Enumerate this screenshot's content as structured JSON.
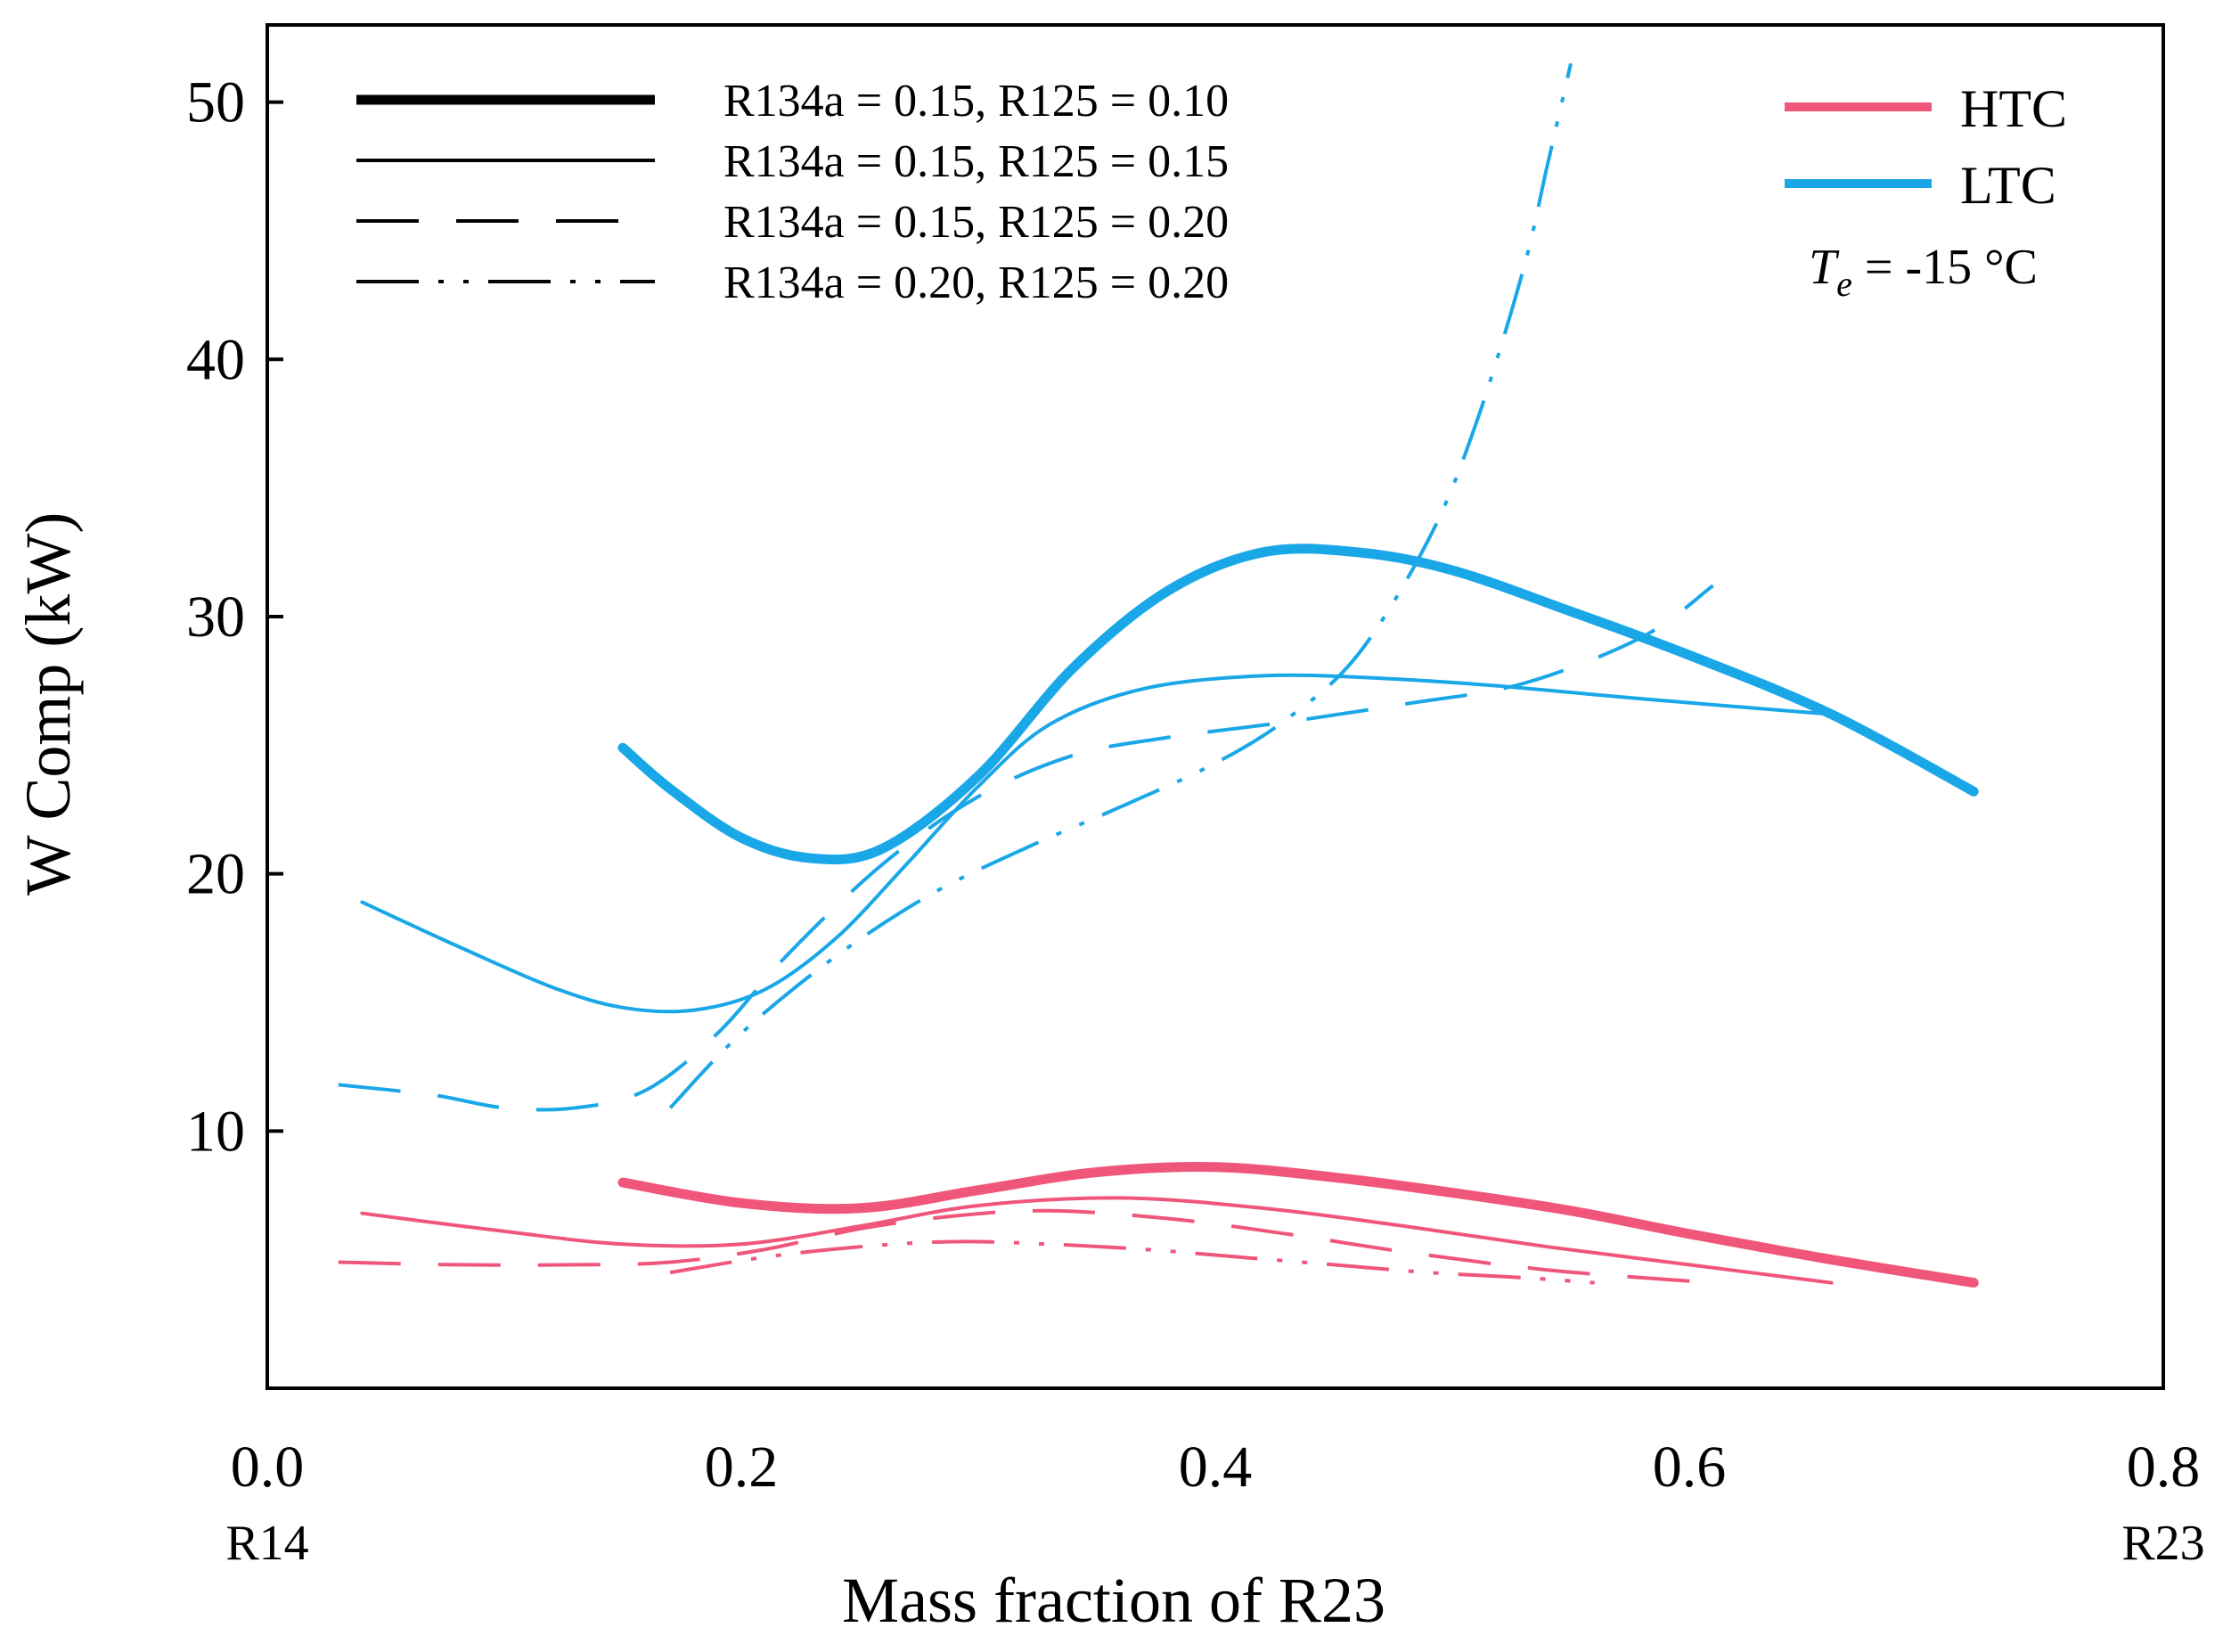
{
  "chart_data": {
    "type": "line",
    "title": "",
    "xlabel": "Mass fraction of R23",
    "ylabel": "W Comp (kW)",
    "xlim": [
      0.0,
      0.8
    ],
    "ylim": [
      0,
      53
    ],
    "x_ticks": [
      {
        "value": 0.0,
        "label": "0.0",
        "sublabel": "R14"
      },
      {
        "value": 0.2,
        "label": "0.2",
        "sublabel": ""
      },
      {
        "value": 0.4,
        "label": "0.4",
        "sublabel": ""
      },
      {
        "value": 0.6,
        "label": "0.6",
        "sublabel": ""
      },
      {
        "value": 0.8,
        "label": "0.8",
        "sublabel": "R23"
      }
    ],
    "y_ticks": [
      {
        "value": 10,
        "label": "10"
      },
      {
        "value": 20,
        "label": "20"
      },
      {
        "value": 30,
        "label": "30"
      },
      {
        "value": 40,
        "label": "40"
      },
      {
        "value": 50,
        "label": "50"
      }
    ],
    "grid": false,
    "annotation": {
      "prefix": "T",
      "subscript": "e",
      "suffix": " = -15 °C"
    },
    "colors": {
      "HTC": "#f0567a",
      "LTC": "#1aa7e8",
      "axis": "#000000"
    },
    "legend_styles": [
      {
        "style": "thick",
        "label": "R134a = 0.15, R125 = 0.10"
      },
      {
        "style": "thin",
        "label": "R134a = 0.15, R125 = 0.15"
      },
      {
        "style": "dashed",
        "label": "R134a = 0.15, R125 = 0.20"
      },
      {
        "style": "dashdotdot",
        "label": "R134a = 0.20, R125 = 0.20"
      }
    ],
    "legend_cycles": [
      {
        "label": "HTC",
        "color": "#f0567a"
      },
      {
        "label": "LTC",
        "color": "#1aa7e8"
      }
    ],
    "series": [
      {
        "name": "LTC, R134a = 0.15, R125 = 0.10",
        "cycle": "LTC",
        "style": "thick",
        "x": [
          0.15,
          0.17,
          0.2,
          0.23,
          0.26,
          0.3,
          0.34,
          0.38,
          0.42,
          0.46,
          0.5,
          0.55,
          0.6,
          0.66,
          0.72
        ],
        "y": [
          24.9,
          23.3,
          21.4,
          20.6,
          21.0,
          23.8,
          28.0,
          31.0,
          32.5,
          32.5,
          31.8,
          30.2,
          28.5,
          26.2,
          23.2
        ]
      },
      {
        "name": "LTC, R134a = 0.15, R125 = 0.15",
        "cycle": "LTC",
        "style": "thin",
        "x": [
          0.04,
          0.08,
          0.12,
          0.15,
          0.18,
          0.21,
          0.24,
          0.27,
          0.3,
          0.33,
          0.37,
          0.42,
          0.47,
          0.52,
          0.58,
          0.66
        ],
        "y": [
          18.9,
          17.2,
          15.6,
          14.8,
          14.7,
          15.5,
          17.5,
          20.4,
          23.4,
          25.8,
          27.2,
          27.7,
          27.6,
          27.3,
          26.8,
          26.2
        ]
      },
      {
        "name": "LTC, R134a = 0.15, R125 = 0.20",
        "cycle": "LTC",
        "style": "dashed",
        "x": [
          0.03,
          0.07,
          0.1,
          0.13,
          0.16,
          0.19,
          0.22,
          0.26,
          0.3,
          0.34,
          0.38,
          0.43,
          0.48,
          0.53,
          0.58,
          0.61
        ],
        "y": [
          11.8,
          11.4,
          10.9,
          10.9,
          11.6,
          13.8,
          16.9,
          20.4,
          23.0,
          24.6,
          25.3,
          25.9,
          26.6,
          27.4,
          29.2,
          31.2
        ]
      },
      {
        "name": "LTC, R134a = 0.20, R125 = 0.20",
        "cycle": "LTC",
        "style": "dashdotdot",
        "x": [
          0.17,
          0.2,
          0.24,
          0.28,
          0.32,
          0.36,
          0.4,
          0.43,
          0.46,
          0.49,
          0.51,
          0.53,
          0.54,
          0.55
        ],
        "y": [
          10.9,
          13.8,
          16.8,
          19.2,
          21.0,
          22.6,
          24.3,
          26.0,
          28.5,
          33.0,
          37.5,
          43.5,
          47.5,
          51.5
        ]
      },
      {
        "name": "HTC, R134a = 0.15, R125 = 0.10",
        "cycle": "HTC",
        "style": "thick",
        "x": [
          0.15,
          0.2,
          0.25,
          0.3,
          0.35,
          0.4,
          0.45,
          0.5,
          0.55,
          0.6,
          0.66,
          0.72
        ],
        "y": [
          8.0,
          7.2,
          7.0,
          7.7,
          8.4,
          8.6,
          8.2,
          7.6,
          6.9,
          6.0,
          5.0,
          4.1
        ]
      },
      {
        "name": "HTC, R134a = 0.15, R125 = 0.15",
        "cycle": "HTC",
        "style": "thin",
        "x": [
          0.04,
          0.1,
          0.15,
          0.2,
          0.25,
          0.3,
          0.36,
          0.42,
          0.48,
          0.54,
          0.6,
          0.66
        ],
        "y": [
          6.8,
          6.1,
          5.6,
          5.6,
          6.3,
          7.1,
          7.4,
          7.0,
          6.3,
          5.5,
          4.8,
          4.1
        ]
      },
      {
        "name": "HTC, R134a = 0.15, R125 = 0.20",
        "cycle": "HTC",
        "style": "dashed",
        "x": [
          0.03,
          0.08,
          0.13,
          0.17,
          0.21,
          0.25,
          0.29,
          0.33,
          0.38,
          0.43,
          0.48,
          0.54,
          0.61
        ],
        "y": [
          4.9,
          4.8,
          4.8,
          4.9,
          5.4,
          6.2,
          6.7,
          6.9,
          6.6,
          6.0,
          5.3,
          4.6,
          4.1
        ]
      },
      {
        "name": "HTC, R134a = 0.20, R125 = 0.20",
        "cycle": "HTC",
        "style": "dashdotdot",
        "x": [
          0.17,
          0.21,
          0.25,
          0.29,
          0.33,
          0.37,
          0.41,
          0.45,
          0.49,
          0.53,
          0.56
        ],
        "y": [
          4.5,
          5.1,
          5.5,
          5.7,
          5.6,
          5.4,
          5.1,
          4.8,
          4.5,
          4.3,
          4.1
        ]
      }
    ]
  }
}
